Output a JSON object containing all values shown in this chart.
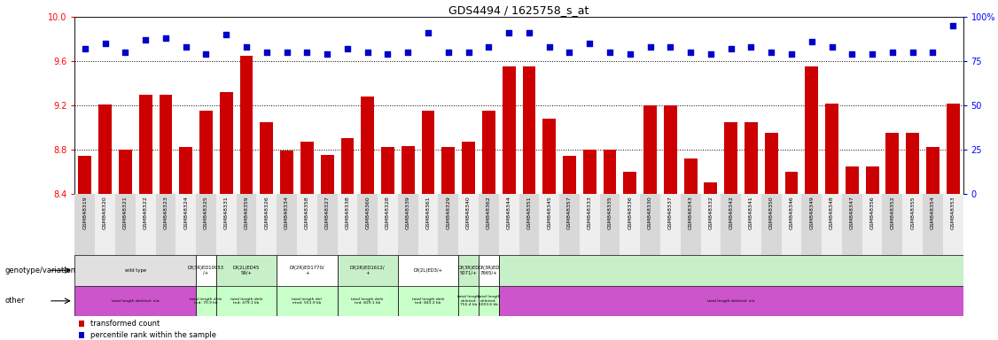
{
  "title": "GDS4494 / 1625758_s_at",
  "samples": [
    "GSM848319",
    "GSM848320",
    "GSM848321",
    "GSM848322",
    "GSM848323",
    "GSM848324",
    "GSM848325",
    "GSM848331",
    "GSM848359",
    "GSM848326",
    "GSM848334",
    "GSM848358",
    "GSM848327",
    "GSM848338",
    "GSM848360",
    "GSM848328",
    "GSM848339",
    "GSM848361",
    "GSM848329",
    "GSM848340",
    "GSM848362",
    "GSM848344",
    "GSM848351",
    "GSM848345",
    "GSM848357",
    "GSM848333",
    "GSM848335",
    "GSM848336",
    "GSM848330",
    "GSM848337",
    "GSM848343",
    "GSM848332",
    "GSM848342",
    "GSM848341",
    "GSM848350",
    "GSM848346",
    "GSM848349",
    "GSM848348",
    "GSM848347",
    "GSM848356",
    "GSM848352",
    "GSM848355",
    "GSM848354",
    "GSM848353"
  ],
  "bar_values": [
    8.74,
    9.21,
    8.8,
    9.3,
    9.3,
    8.82,
    9.15,
    9.32,
    9.65,
    9.05,
    8.79,
    8.87,
    8.75,
    8.9,
    9.28,
    8.82,
    8.83,
    9.15,
    8.82,
    8.87,
    9.15,
    9.55,
    9.55,
    9.08,
    8.74,
    8.8,
    8.8,
    8.6,
    9.2,
    9.2,
    8.72,
    8.5,
    9.05,
    9.05,
    8.95,
    8.6,
    9.55,
    9.22,
    8.65,
    8.65,
    8.95,
    8.95,
    8.82,
    9.22
  ],
  "percentile_values_pct": [
    82,
    85,
    80,
    87,
    88,
    83,
    79,
    90,
    83,
    80,
    80,
    80,
    79,
    82,
    80,
    79,
    80,
    91,
    80,
    80,
    83,
    91,
    91,
    83,
    80,
    85,
    80,
    79,
    83,
    83,
    80,
    79,
    82,
    83,
    80,
    79,
    86,
    83,
    79,
    79,
    80,
    80,
    80,
    95
  ],
  "bar_color": "#cc0000",
  "percentile_color": "#0000cc",
  "ylim_left": [
    8.4,
    10.0
  ],
  "yticks_left": [
    8.4,
    8.8,
    9.2,
    9.6,
    10.0
  ],
  "ylim_right": [
    0,
    100
  ],
  "yticks_right": [
    0,
    25,
    50,
    75,
    100
  ],
  "yticklabels_right": [
    "0",
    "25",
    "50",
    "75",
    "100%"
  ],
  "background_color": "#ffffff",
  "dotted_line_values": [
    8.8,
    9.2,
    9.6
  ],
  "geno_groups": [
    {
      "s": 0,
      "e": 5,
      "bg": "#e0e0e0",
      "label": "wild type"
    },
    {
      "s": 6,
      "e": 6,
      "bg": "#ffffff",
      "label": "Df(3R)ED10953\n/+"
    },
    {
      "s": 7,
      "e": 9,
      "bg": "#c8f0c8",
      "label": "Df(2L)ED45\n59/+"
    },
    {
      "s": 10,
      "e": 12,
      "bg": "#ffffff",
      "label": "Df(2R)ED1770/\n+"
    },
    {
      "s": 13,
      "e": 15,
      "bg": "#c8f0c8",
      "label": "Df(2R)ED1612/\n+"
    },
    {
      "s": 16,
      "e": 18,
      "bg": "#ffffff",
      "label": "Df(2L)ED3/+"
    },
    {
      "s": 19,
      "e": 19,
      "bg": "#c8f0c8",
      "label": "Df(3R)ED\n5071/+"
    },
    {
      "s": 20,
      "e": 20,
      "bg": "#ffffff",
      "label": "Df(3R)ED\n7665/+"
    },
    {
      "s": 21,
      "e": 43,
      "bg": "#c8f0c8",
      "label": ""
    }
  ],
  "other_groups": [
    {
      "s": 0,
      "e": 5,
      "bg": "#cc55cc",
      "label": "total length deleted: n/a"
    },
    {
      "s": 6,
      "e": 6,
      "bg": "#c8ffc8",
      "label": "total length dele\nted: 70.9 kb"
    },
    {
      "s": 7,
      "e": 9,
      "bg": "#c8ffc8",
      "label": "total length dele\nted: 479.1 kb"
    },
    {
      "s": 10,
      "e": 12,
      "bg": "#c8ffc8",
      "label": "total length del\neted: 551.9 kb"
    },
    {
      "s": 13,
      "e": 15,
      "bg": "#c8ffc8",
      "label": "total length dele\nted: 829.1 kb"
    },
    {
      "s": 16,
      "e": 18,
      "bg": "#c8ffc8",
      "label": "total length dele\nted: 843.2 kb"
    },
    {
      "s": 19,
      "e": 19,
      "bg": "#c8ffc8",
      "label": "total length\ndeleted:\n755.4 kb"
    },
    {
      "s": 20,
      "e": 20,
      "bg": "#c8ffc8",
      "label": "total length\ndeleted:\n1003.6 kb"
    },
    {
      "s": 21,
      "e": 43,
      "bg": "#cc55cc",
      "label": "total length deleted: n/a"
    }
  ]
}
